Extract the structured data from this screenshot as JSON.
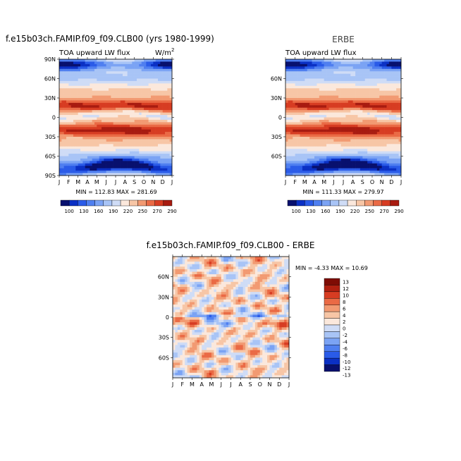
{
  "top_left": {
    "title": "f.e15b03ch.FAMIP.f09_f09.CLB00 (yrs 1980-1999)",
    "left_label": "TOA upward LW flux",
    "units": "W/m",
    "units_exp": "2",
    "stats": "MIN = 112.83  MAX = 281.69"
  },
  "top_right": {
    "title": "ERBE",
    "left_label": "TOA upward LW flux",
    "stats": "MIN = 111.33  MAX = 279.97"
  },
  "bottom": {
    "title": "f.e15b03ch.FAMIP.f09_f09.CLB00 - ERBE",
    "stats": "MIN =  -4.33 MAX =  10.69"
  },
  "chart_data": [
    {
      "type": "heatmap",
      "title": "TOA upward LW flux",
      "x": [
        "J",
        "F",
        "M",
        "A",
        "M",
        "J",
        "J",
        "A",
        "S",
        "O",
        "N",
        "D",
        "J"
      ],
      "y_ticks": [
        "90N",
        "60N",
        "30N",
        "0",
        "30S",
        "60S",
        "90S"
      ],
      "min": 112.83,
      "max": 281.69,
      "colorbar_levels": [
        100,
        130,
        160,
        190,
        220,
        250,
        270,
        290
      ]
    },
    {
      "type": "heatmap",
      "title": "ERBE",
      "x": [
        "J",
        "F",
        "M",
        "A",
        "M",
        "J",
        "J",
        "A",
        "S",
        "O",
        "N",
        "D",
        "J"
      ],
      "y_ticks": [
        "60N",
        "30N",
        "0",
        "30S",
        "60S"
      ],
      "min": 111.33,
      "max": 279.97,
      "colorbar_levels": [
        100,
        130,
        160,
        190,
        220,
        250,
        270,
        290
      ]
    },
    {
      "type": "heatmap",
      "title": "f.e15b03ch.FAMIP.f09_f09.CLB00 - ERBE",
      "x": [
        "J",
        "F",
        "M",
        "A",
        "M",
        "J",
        "J",
        "A",
        "S",
        "O",
        "N",
        "D",
        "J"
      ],
      "y_ticks": [
        "60N",
        "30N",
        "0",
        "30S",
        "60S"
      ],
      "min": -4.33,
      "max": 10.69,
      "colorbar_levels": [
        "13",
        "12",
        "10",
        "8",
        "6",
        "4",
        "2",
        "0",
        "-2",
        "-4",
        "-6",
        "-8",
        "-10",
        "-12",
        "-13"
      ]
    }
  ],
  "colors": {
    "abs_scale": [
      "#08106e",
      "#0b30c4",
      "#2a5be8",
      "#4f7ff0",
      "#7ba3f4",
      "#a8c4f6",
      "#cfdcf6",
      "#fbe8dc",
      "#f7c6a6",
      "#f29a72",
      "#ea6a45",
      "#d73c22",
      "#a81b10"
    ],
    "diff_scale": [
      "#08106e",
      "#0b30c4",
      "#2a5be8",
      "#4f7ff0",
      "#7ba3f4",
      "#a8c4f6",
      "#cfdcf6",
      "#fbe8dc",
      "#f7c6a6",
      "#f29a72",
      "#ea6a45",
      "#d73c22",
      "#b02010",
      "#7e0c04"
    ]
  }
}
